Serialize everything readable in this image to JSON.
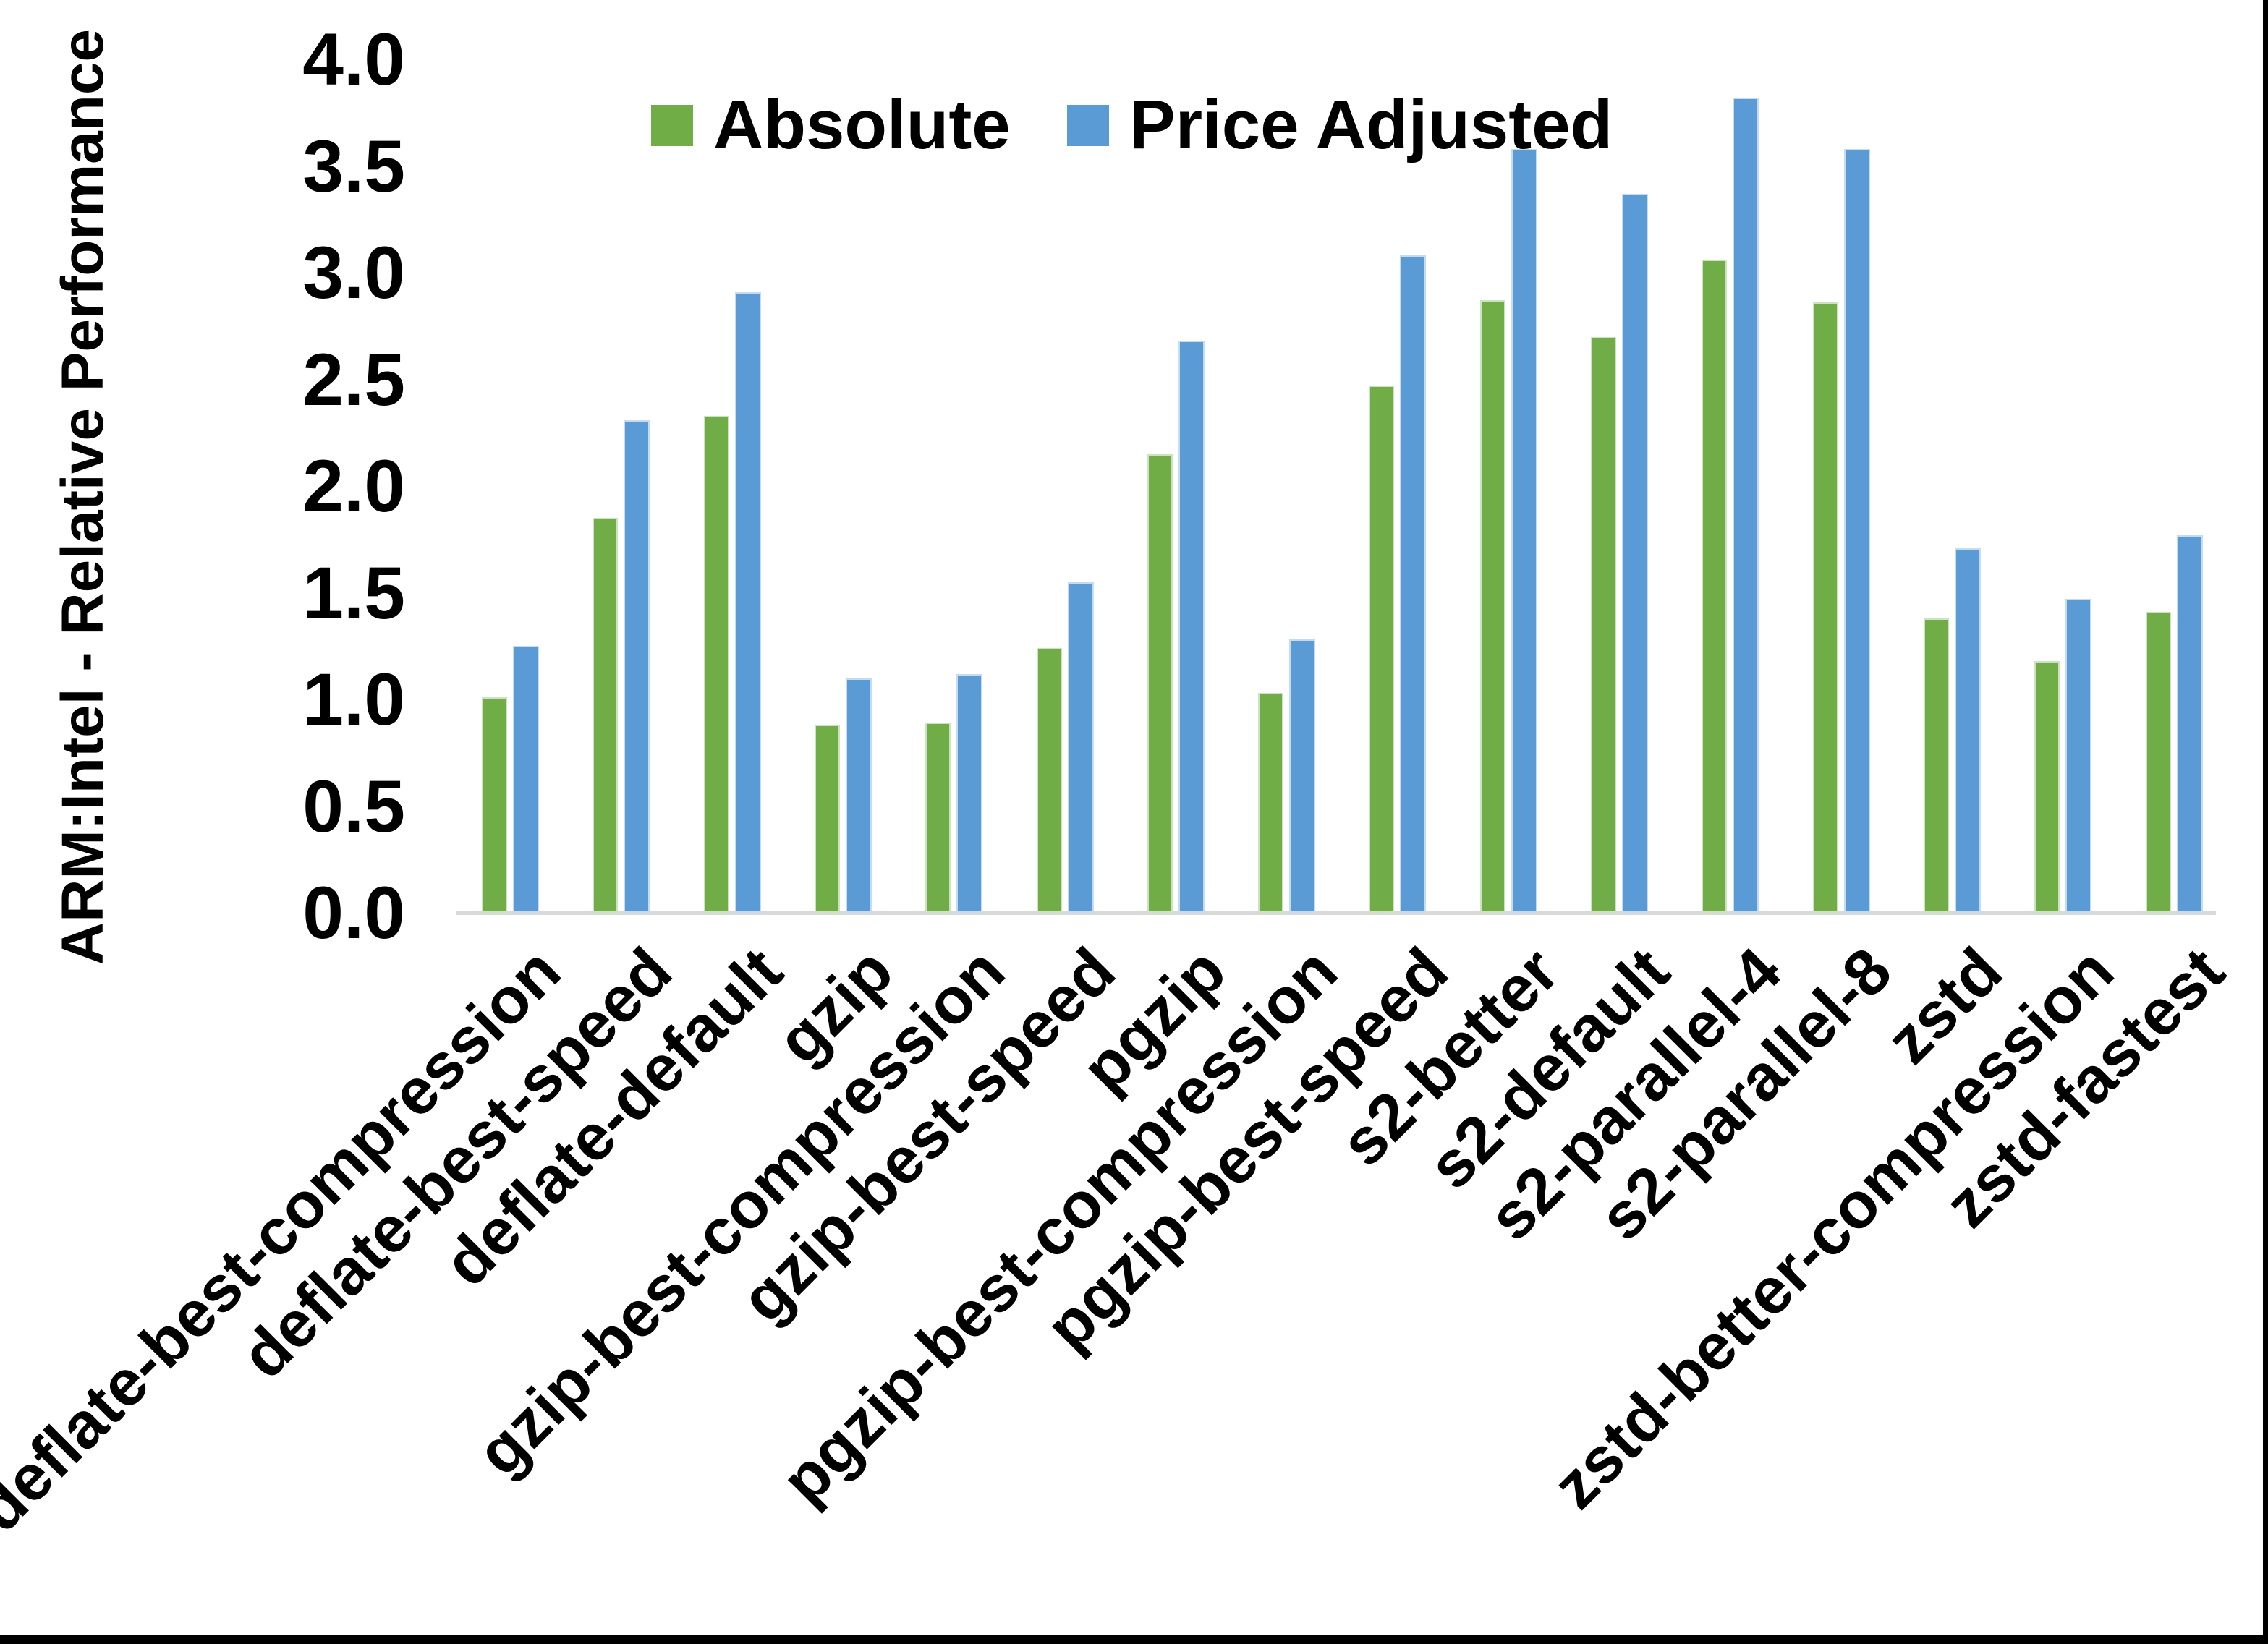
{
  "chart_data": {
    "type": "bar",
    "title": "",
    "ylabel": "ARM:Intel - Relative Performance",
    "xlabel": "",
    "ylim": [
      0.0,
      4.0
    ],
    "ytick_step": 0.5,
    "yticks": [
      {
        "value": 0.0,
        "label": "0.0"
      },
      {
        "value": 0.5,
        "label": "0.5"
      },
      {
        "value": 1.0,
        "label": "1.0"
      },
      {
        "value": 1.5,
        "label": "1.5"
      },
      {
        "value": 2.0,
        "label": "2.0"
      },
      {
        "value": 2.5,
        "label": "2.5"
      },
      {
        "value": 3.0,
        "label": "3.0"
      },
      {
        "value": 3.5,
        "label": "3.5"
      },
      {
        "value": 4.0,
        "label": "4.0"
      }
    ],
    "grid": false,
    "legend_position": "top-center",
    "axis_line_color": "#d9d9d9",
    "categories": [
      "deflate-best-compression",
      "deflate-best-speed",
      "deflate-default",
      "gzip",
      "gzip-best-compression",
      "gzip-best-speed",
      "pgzip",
      "pgzip-best-compression",
      "pgzip-best-speed",
      "s2-better",
      "s2-default",
      "s2-parallel-4",
      "s2-parallel-8",
      "zstd",
      "zstd-better-compression",
      "zstd-fastest"
    ],
    "series": [
      {
        "name": "Absolute",
        "color": "#70AD47",
        "values": [
          1.01,
          1.85,
          2.33,
          0.88,
          0.89,
          1.24,
          2.15,
          1.03,
          2.47,
          2.87,
          2.7,
          3.06,
          2.86,
          1.38,
          1.18,
          1.41
        ]
      },
      {
        "name": "Price Adjusted",
        "color": "#5B9BD5",
        "values": [
          1.25,
          2.31,
          2.91,
          1.1,
          1.12,
          1.55,
          2.68,
          1.28,
          3.08,
          3.58,
          3.37,
          3.82,
          3.58,
          1.71,
          1.47,
          1.77
        ]
      }
    ]
  }
}
